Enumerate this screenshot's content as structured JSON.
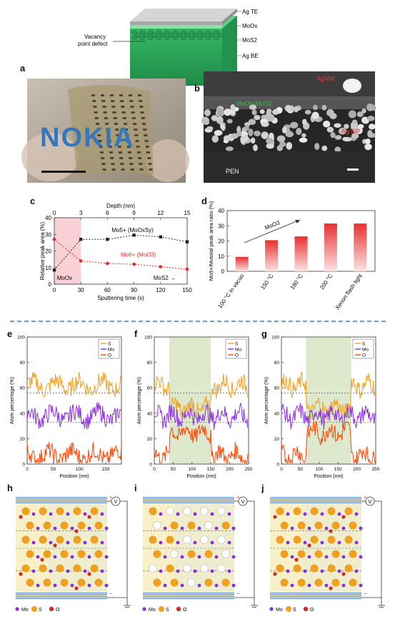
{
  "panel_letters": {
    "a": "a",
    "b": "b",
    "c": "c",
    "d": "d",
    "e": "e",
    "f": "f",
    "g": "g",
    "h": "h",
    "i": "i",
    "j": "j"
  },
  "device": {
    "layers": [
      "Ag TE",
      "MoOx",
      "MoS2",
      "Ag BE"
    ],
    "defect_label_1": "Vacancy",
    "defect_label_2": "point defect"
  },
  "photo_a": {
    "text": "NOKIA"
  },
  "sem_b": {
    "agnw": "AgNW",
    "moox_mos2": "MoOx-MoS2",
    "agnp": "Ag NP",
    "pen": "PEN"
  },
  "chart_c": {
    "type": "line",
    "top_axis_label": "Depth (nm)",
    "top_ticks": [
      "0",
      "3",
      "6",
      "9",
      "12",
      "15"
    ],
    "xlabel": "Sputtering time (s)",
    "x_ticks": [
      "0",
      "30",
      "60",
      "90",
      "120",
      "150"
    ],
    "ylabel": "Relative peak area (%)",
    "y_ticks": [
      "0",
      "10",
      "20",
      "30",
      "40"
    ],
    "ylim": [
      0,
      40
    ],
    "region_label": "MoOx",
    "mos2_label": "MoS2 →",
    "series": [
      {
        "name": "Mo5+ (MoOxSy)",
        "color": "#222222",
        "x": [
          0,
          30,
          60,
          90,
          120,
          150
        ],
        "values": [
          8.5,
          27,
          27,
          29.5,
          28.5,
          25.5
        ]
      },
      {
        "name": "Mo6+ (MoO3)",
        "color": "#e03030",
        "x": [
          0,
          30,
          60,
          90,
          120,
          150
        ],
        "values": [
          27,
          14,
          12.5,
          12,
          10.5,
          9
        ]
      }
    ]
  },
  "chart_d": {
    "type": "bar",
    "ylabel": "Mo5+/Mototal peak area ratio (%)",
    "y_ticks": [
      "0",
      "10",
      "20",
      "30",
      "40"
    ],
    "ylim": [
      0,
      40
    ],
    "arrow_label": "MoO3",
    "categories": [
      "100 °C in vacuo",
      "150 °C",
      "180 °C",
      "200 °C",
      "Xenon flash light"
    ],
    "values": [
      9.5,
      20.5,
      23,
      31.5,
      31.5
    ]
  },
  "chart_e": {
    "xlabel": "Position (nm)",
    "ylabel": "Atom percentage (%)",
    "x_ticks": [
      "0",
      "50",
      "100",
      "150"
    ],
    "y_ticks": [
      "0",
      "20",
      "40",
      "60",
      "80",
      "100"
    ],
    "legend": [
      "S",
      "Mo",
      "O"
    ]
  },
  "chart_f": {
    "xlabel": "Position (nm)",
    "ylabel": "Atom percentage (%)",
    "x_ticks": [
      "0",
      "50",
      "100",
      "150",
      "200",
      "250"
    ],
    "y_ticks": [
      "0",
      "20",
      "40",
      "60",
      "80",
      "100"
    ],
    "legend": [
      "S",
      "Mo",
      "O"
    ]
  },
  "chart_g": {
    "xlabel": "Position (nm)",
    "ylabel": "Atom percentage (%)",
    "x_ticks": [
      "0",
      "50",
      "100",
      "150",
      "200",
      "250"
    ],
    "y_ticks": [
      "0",
      "20",
      "40",
      "60",
      "80",
      "100"
    ],
    "legend": [
      "S",
      "Mo",
      "O"
    ]
  },
  "schematics": {
    "legend": [
      "Mo",
      "S",
      "O"
    ],
    "voltmeter": "V",
    "plus": "+",
    "minus": "−"
  },
  "colors": {
    "s": "#f0a020",
    "mo": "#8a2be2",
    "o": "#ff4500",
    "bar": "#e83030",
    "sep": "#3a7bd5"
  }
}
